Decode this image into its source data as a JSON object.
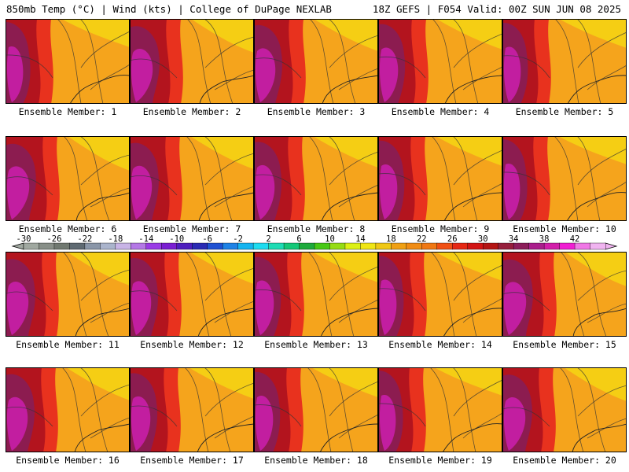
{
  "header": {
    "left": "850mb Temp (°C) | Wind (kts) | College of DuPage NEXLAB",
    "right": "18Z GEFS | F054 Valid: 00Z SUN JUN 08 2025"
  },
  "panels": [
    {
      "label": "Ensemble Member: 1"
    },
    {
      "label": "Ensemble Member: 2"
    },
    {
      "label": "Ensemble Member: 3"
    },
    {
      "label": "Ensemble Member: 4"
    },
    {
      "label": "Ensemble Member: 5"
    },
    {
      "label": "Ensemble Member: 6"
    },
    {
      "label": "Ensemble Member: 7"
    },
    {
      "label": "Ensemble Member: 8"
    },
    {
      "label": "Ensemble Member: 9"
    },
    {
      "label": "Ensemble Member: 10"
    },
    {
      "label": "Ensemble Member: 11"
    },
    {
      "label": "Ensemble Member: 12"
    },
    {
      "label": "Ensemble Member: 13"
    },
    {
      "label": "Ensemble Member: 14"
    },
    {
      "label": "Ensemble Member: 15"
    },
    {
      "label": "Ensemble Member: 16"
    },
    {
      "label": "Ensemble Member: 17"
    },
    {
      "label": "Ensemble Member: 18"
    },
    {
      "label": "Ensemble Member: 19"
    },
    {
      "label": "Ensemble Member: 20"
    }
  ],
  "colorbar": {
    "ticks": [
      "-30",
      "-26",
      "-22",
      "-18",
      "-14",
      "-10",
      "-6",
      "-2",
      "2",
      "6",
      "10",
      "14",
      "18",
      "22",
      "26",
      "30",
      "34",
      "38",
      "42"
    ],
    "colors": [
      "#a0a8a0",
      "#888f88",
      "#707870",
      "#5f6a72",
      "#8a96a8",
      "#aab4cc",
      "#c8b4e6",
      "#b478e6",
      "#9a3ce6",
      "#7a1ed2",
      "#4e1ebe",
      "#2a2ab4",
      "#1e50d2",
      "#1e82e6",
      "#14b4f0",
      "#1edcf0",
      "#1edcb4",
      "#14c878",
      "#1eaa3c",
      "#46c814",
      "#96dc14",
      "#dcf014",
      "#f0e614",
      "#f0c814",
      "#f0a014",
      "#f08c14",
      "#f07814",
      "#f05014",
      "#e62814",
      "#d21414",
      "#b41414",
      "#961e3c",
      "#8c1e5a",
      "#aa1e8c",
      "#d21eaa",
      "#f01ed2",
      "#f078e6",
      "#f0b4f0"
    ]
  },
  "map_colors": {
    "base": "#f5a41c",
    "yellow": "#f5d314",
    "red": "#e8321e",
    "darkred": "#b3141e",
    "maroon": "#8c1c50",
    "magenta": "#c21ea0",
    "contour": "#333333"
  }
}
